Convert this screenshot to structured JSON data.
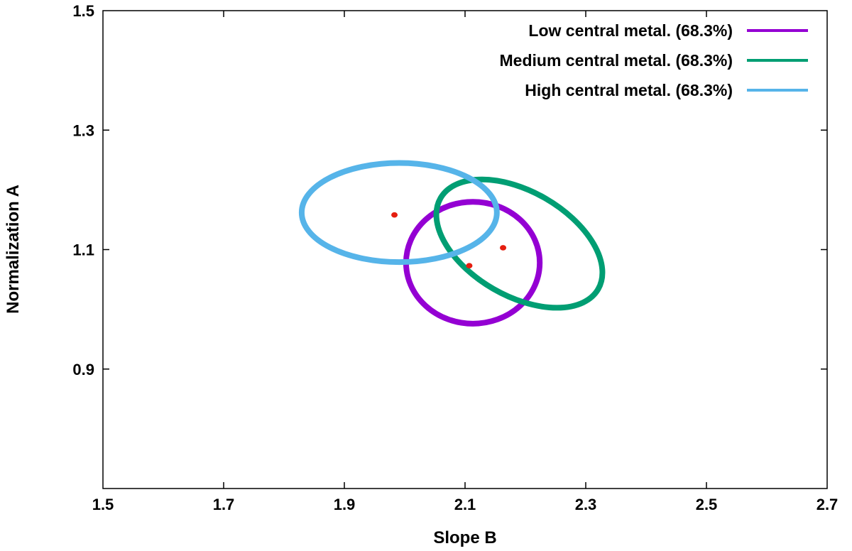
{
  "chart_data": {
    "type": "scatter",
    "xlabel": "Slope B",
    "ylabel": "Normalization A",
    "xlim": [
      1.5,
      2.7
    ],
    "ylim": [
      0.7,
      1.5
    ],
    "x_ticks": [
      "1.5",
      "1.7",
      "1.9",
      "2.1",
      "2.3",
      "2.5",
      "2.7"
    ],
    "y_ticks": [
      "0.9",
      "1.1",
      "1.3",
      "1.5"
    ],
    "x_tick_values": [
      1.5,
      1.7,
      1.9,
      2.1,
      2.3,
      2.5,
      2.7
    ],
    "y_tick_values": [
      0.9,
      1.1,
      1.3,
      1.5
    ],
    "grid": false,
    "legend_position": "top-right",
    "series": [
      {
        "name": "Low central metal. (68.3%)",
        "color": "#9400d3",
        "contour": {
          "center": [
            2.113,
            1.078
          ],
          "x_half_range": 0.113,
          "y_half_range": 0.102
        }
      },
      {
        "name": "Medium central metal. (68.3%)",
        "color": "#009e73",
        "contour": {
          "center": [
            2.19,
            1.11
          ],
          "x_half_range": 0.145,
          "y_half_range": 0.112
        }
      },
      {
        "name": "High central metal. (68.3%)",
        "color": "#56b4e9",
        "contour": {
          "center": [
            1.991,
            1.162
          ],
          "x_half_range": 0.165,
          "y_half_range": 0.083
        }
      }
    ],
    "best_fit_points": {
      "color": "#e51e10",
      "points": [
        [
          1.983,
          1.158
        ],
        [
          2.107,
          1.073
        ],
        [
          2.163,
          1.103
        ]
      ]
    }
  }
}
